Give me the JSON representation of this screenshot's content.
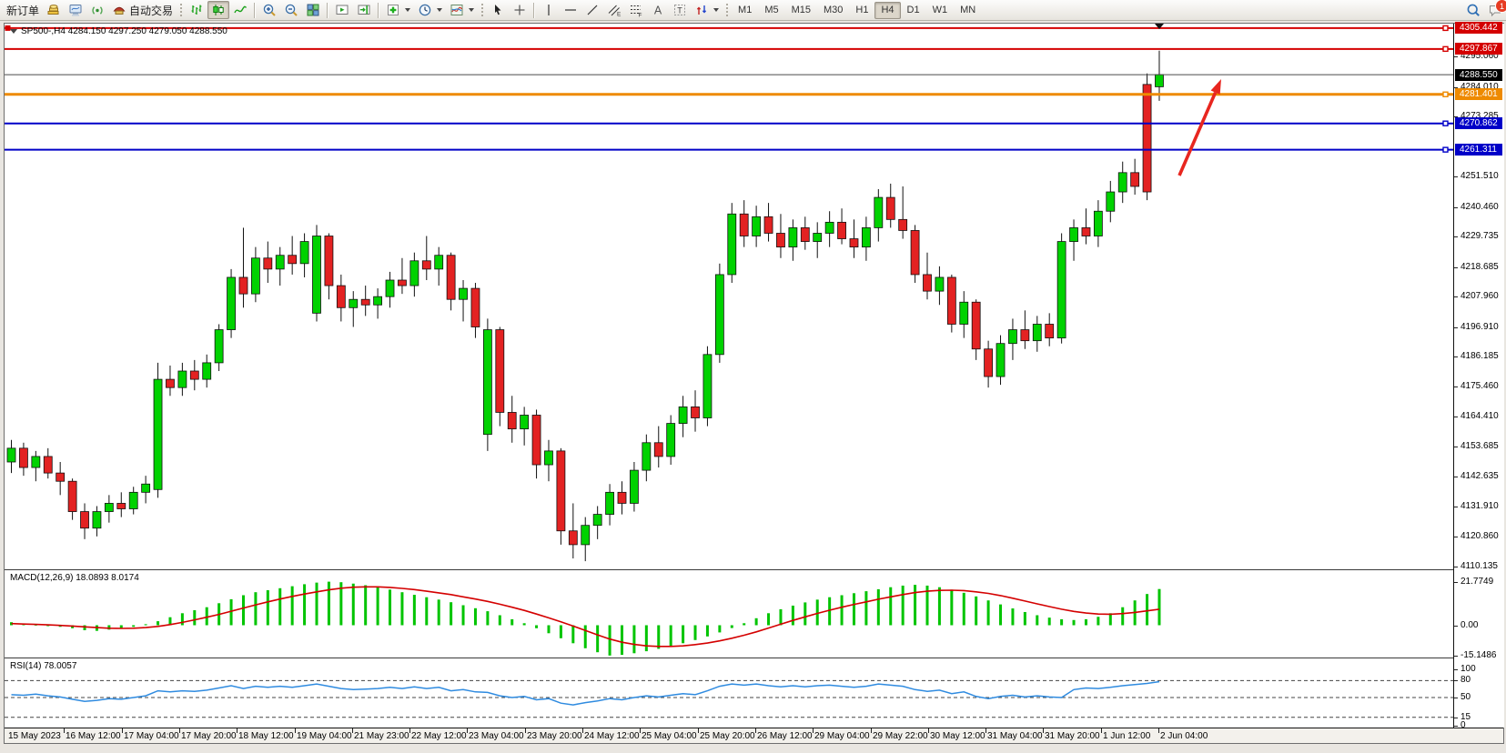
{
  "toolbar": {
    "new_order": "新订单",
    "auto_trading": "自动交易",
    "timeframes": [
      "M1",
      "M5",
      "M15",
      "M30",
      "H1",
      "H4",
      "D1",
      "W1",
      "MN"
    ],
    "active_timeframe": "H4",
    "chat_badge": "1",
    "items": [
      {
        "name": "new-order-button",
        "label": "新订单"
      },
      {
        "name": "gold-bars-icon-button",
        "kind": "gold"
      },
      {
        "name": "terminal-icon-button",
        "kind": "terminal"
      },
      {
        "name": "signal-icon-button",
        "kind": "signal"
      },
      {
        "name": "auto-trading-button",
        "kind": "ea",
        "label": "自动交易"
      },
      {
        "grip": true
      },
      {
        "name": "bar-chart-button",
        "kind": "bars"
      },
      {
        "name": "candlestick-chart-button",
        "kind": "candles",
        "active": true
      },
      {
        "name": "line-chart-button",
        "kind": "linechart"
      },
      {
        "sep": true
      },
      {
        "name": "zoom-in-button",
        "kind": "zoomin"
      },
      {
        "name": "zoom-out-button",
        "kind": "zoomout"
      },
      {
        "name": "tile-windows-button",
        "kind": "tile"
      },
      {
        "sep": true
      },
      {
        "name": "auto-scroll-button",
        "kind": "autoscroll"
      },
      {
        "name": "chart-shift-button",
        "kind": "chartshift"
      },
      {
        "sep": true
      },
      {
        "name": "new-chart-button",
        "kind": "newchart",
        "caret": true
      },
      {
        "name": "periodicity-button",
        "kind": "clock",
        "caret": true
      },
      {
        "name": "templates-button",
        "kind": "template",
        "caret": true
      },
      {
        "grip": true
      },
      {
        "name": "cursor-button",
        "kind": "cursor"
      },
      {
        "name": "crosshair-button",
        "kind": "crosshair"
      },
      {
        "sep": true
      },
      {
        "name": "vertical-line-button",
        "kind": "vline"
      },
      {
        "name": "horizontal-line-button",
        "kind": "hline"
      },
      {
        "name": "trendline-button",
        "kind": "tline"
      },
      {
        "name": "equidistant-channel-button",
        "kind": "channel"
      },
      {
        "name": "fibonacci-button",
        "kind": "fibo"
      },
      {
        "name": "text-button",
        "kind": "textA"
      },
      {
        "name": "text-label-button",
        "kind": "textT"
      },
      {
        "name": "arrows-button",
        "kind": "arrows",
        "caret": true
      },
      {
        "grip": true
      },
      {
        "timeframes": true
      },
      {
        "spacer": true
      },
      {
        "name": "search-button",
        "kind": "magnify"
      },
      {
        "name": "chat-button",
        "kind": "chat",
        "badge": "1"
      }
    ]
  },
  "chart": {
    "title": "SP500-,H4  4284.150 4297.250 4279.050 4288.550",
    "symbol": "SP500-",
    "period": "H4",
    "ohlc": {
      "open": "4284.150",
      "high": "4297.250",
      "low": "4279.050",
      "close": "4288.550"
    }
  },
  "indicators": {
    "macd": {
      "label": "MACD(12,26,9) 18.0893 8.0174",
      "axis": [
        "21.7749",
        "0.00",
        "-15.1486"
      ]
    },
    "rsi": {
      "label": "RSI(14) 78.0057",
      "axis": [
        "100",
        "80",
        "50",
        "15",
        "0"
      ],
      "levels": [
        80,
        50,
        15
      ]
    }
  },
  "price_axis": {
    "ticks": [
      "4295.060",
      "4284.010",
      "4273.285",
      "4251.510",
      "4240.460",
      "4229.735",
      "4218.685",
      "4207.960",
      "4196.910",
      "4186.185",
      "4175.460",
      "4164.410",
      "4153.685",
      "4142.635",
      "4131.910",
      "4120.860",
      "4110.135"
    ],
    "badges": [
      {
        "text": "4305.442",
        "color": "#d40000"
      },
      {
        "text": "4297.867",
        "color": "#d40000"
      },
      {
        "text": "4288.550",
        "color": "#000000"
      },
      {
        "text": "4281.401",
        "color": "#ee8a00"
      },
      {
        "text": "4270.862",
        "color": "#0000c8"
      },
      {
        "text": "4261.311",
        "color": "#0000c8"
      }
    ]
  },
  "hlines": [
    {
      "price": 4305.442,
      "color": "#d40000",
      "width": 2,
      "left_handle": true,
      "right_handle": true
    },
    {
      "price": 4297.867,
      "color": "#d40000",
      "width": 2,
      "right_handle": true
    },
    {
      "price": 4288.55,
      "color": "#4a4a4a",
      "width": 1
    },
    {
      "price": 4281.401,
      "color": "#ee8a00",
      "width": 3,
      "right_handle": true
    },
    {
      "price": 4270.862,
      "color": "#0000c8",
      "width": 2,
      "right_handle": true
    },
    {
      "price": 4261.311,
      "color": "#0000c8",
      "width": 2,
      "right_handle": true
    }
  ],
  "time_axis": [
    "15 May 2023",
    "16 May 12:00",
    "17 May 04:00",
    "17 May 20:00",
    "18 May 12:00",
    "19 May 04:00",
    "21 May 23:00",
    "22 May 12:00",
    "23 May 04:00",
    "23 May 20:00",
    "24 May 12:00",
    "25 May 04:00",
    "25 May 20:00",
    "26 May 12:00",
    "29 May 04:00",
    "29 May 22:00",
    "30 May 12:00",
    "31 May 04:00",
    "31 May 20:00",
    "1 Jun 12:00",
    "2 Jun 04:00"
  ],
  "annotations": {
    "trend_arrow": {
      "color": "#e8261f",
      "tail": [
        1291,
        167
      ],
      "tip": [
        1337,
        61
      ]
    }
  },
  "colors": {
    "candle_up": "#00d200",
    "candle_down": "#e32222",
    "candle_outline": "#111111",
    "macd_hist": "#00c400",
    "macd_signal": "#d40000",
    "rsi_line": "#2f8be0"
  },
  "chart_data": {
    "type": "candlestick",
    "symbol": "SP500-",
    "timeframe": "H4",
    "price_range": [
      4108,
      4306.4
    ],
    "candles": [
      [
        4148,
        4156,
        4144,
        4153
      ],
      [
        4153,
        4155,
        4143,
        4146
      ],
      [
        4146,
        4152,
        4141,
        4150
      ],
      [
        4150,
        4153,
        4142,
        4144
      ],
      [
        4144,
        4148,
        4136,
        4141
      ],
      [
        4141,
        4142,
        4127,
        4130
      ],
      [
        4130,
        4133,
        4120,
        4124
      ],
      [
        4124,
        4132,
        4121,
        4130
      ],
      [
        4130,
        4136,
        4126,
        4133
      ],
      [
        4133,
        4137,
        4128,
        4131
      ],
      [
        4131,
        4139,
        4129,
        4137
      ],
      [
        4137,
        4143,
        4133,
        4140
      ],
      [
        4138,
        4184,
        4135,
        4178
      ],
      [
        4178,
        4183,
        4172,
        4175
      ],
      [
        4175,
        4184,
        4172,
        4181
      ],
      [
        4181,
        4185,
        4174,
        4178
      ],
      [
        4178,
        4187,
        4175,
        4184
      ],
      [
        4184,
        4198,
        4181,
        4196
      ],
      [
        4196,
        4218,
        4193,
        4215
      ],
      [
        4215,
        4233,
        4204,
        4209
      ],
      [
        4209,
        4226,
        4206,
        4222
      ],
      [
        4222,
        4228,
        4213,
        4218
      ],
      [
        4218,
        4226,
        4212,
        4223
      ],
      [
        4223,
        4230,
        4216,
        4220
      ],
      [
        4220,
        4231,
        4215,
        4228
      ],
      [
        4202,
        4234,
        4199,
        4230
      ],
      [
        4230,
        4231,
        4207,
        4212
      ],
      [
        4212,
        4216,
        4199,
        4204
      ],
      [
        4204,
        4210,
        4197,
        4207
      ],
      [
        4207,
        4212,
        4201,
        4205
      ],
      [
        4205,
        4211,
        4200,
        4208
      ],
      [
        4208,
        4217,
        4204,
        4214
      ],
      [
        4214,
        4222,
        4209,
        4212
      ],
      [
        4212,
        4224,
        4208,
        4221
      ],
      [
        4221,
        4230,
        4214,
        4218
      ],
      [
        4218,
        4226,
        4212,
        4223
      ],
      [
        4223,
        4224,
        4203,
        4207
      ],
      [
        4207,
        4214,
        4199,
        4211
      ],
      [
        4211,
        4213,
        4193,
        4197
      ],
      [
        4158,
        4200,
        4152,
        4196
      ],
      [
        4196,
        4197,
        4161,
        4166
      ],
      [
        4166,
        4172,
        4155,
        4160
      ],
      [
        4160,
        4168,
        4154,
        4165
      ],
      [
        4165,
        4167,
        4142,
        4147
      ],
      [
        4147,
        4156,
        4141,
        4152
      ],
      [
        4152,
        4153,
        4118,
        4123
      ],
      [
        4123,
        4133,
        4113,
        4118
      ],
      [
        4118,
        4128,
        4112,
        4125
      ],
      [
        4125,
        4132,
        4120,
        4129
      ],
      [
        4129,
        4140,
        4125,
        4137
      ],
      [
        4137,
        4141,
        4129,
        4133
      ],
      [
        4133,
        4148,
        4130,
        4145
      ],
      [
        4145,
        4158,
        4141,
        4155
      ],
      [
        4155,
        4161,
        4146,
        4150
      ],
      [
        4150,
        4165,
        4147,
        4162
      ],
      [
        4162,
        4172,
        4157,
        4168
      ],
      [
        4168,
        4174,
        4159,
        4164
      ],
      [
        4164,
        4190,
        4161,
        4187
      ],
      [
        4187,
        4220,
        4184,
        4216
      ],
      [
        4216,
        4242,
        4213,
        4238
      ],
      [
        4238,
        4243,
        4226,
        4230
      ],
      [
        4230,
        4241,
        4226,
        4237
      ],
      [
        4237,
        4242,
        4228,
        4231
      ],
      [
        4231,
        4238,
        4222,
        4226
      ],
      [
        4226,
        4236,
        4221,
        4233
      ],
      [
        4233,
        4237,
        4225,
        4228
      ],
      [
        4228,
        4235,
        4222,
        4231
      ],
      [
        4231,
        4239,
        4226,
        4235
      ],
      [
        4235,
        4240,
        4227,
        4229
      ],
      [
        4229,
        4236,
        4222,
        4226
      ],
      [
        4226,
        4237,
        4221,
        4233
      ],
      [
        4233,
        4247,
        4228,
        4244
      ],
      [
        4244,
        4249,
        4233,
        4236
      ],
      [
        4236,
        4248,
        4229,
        4232
      ],
      [
        4232,
        4234,
        4213,
        4216
      ],
      [
        4216,
        4224,
        4207,
        4210
      ],
      [
        4210,
        4219,
        4205,
        4215
      ],
      [
        4215,
        4216,
        4195,
        4198
      ],
      [
        4198,
        4210,
        4193,
        4206
      ],
      [
        4206,
        4207,
        4185,
        4189
      ],
      [
        4189,
        4192,
        4175,
        4179
      ],
      [
        4179,
        4194,
        4176,
        4191
      ],
      [
        4191,
        4200,
        4185,
        4196
      ],
      [
        4196,
        4203,
        4189,
        4192
      ],
      [
        4192,
        4201,
        4188,
        4198
      ],
      [
        4198,
        4202,
        4190,
        4193
      ],
      [
        4193,
        4231,
        4191,
        4228
      ],
      [
        4228,
        4236,
        4221,
        4233
      ],
      [
        4233,
        4240,
        4227,
        4230
      ],
      [
        4230,
        4243,
        4226,
        4239
      ],
      [
        4239,
        4250,
        4235,
        4246
      ],
      [
        4246,
        4257,
        4242,
        4253
      ],
      [
        4253,
        4258,
        4245,
        4248
      ],
      [
        4285,
        4289,
        4243,
        4246
      ],
      [
        4284.15,
        4297.25,
        4279.05,
        4288.55
      ]
    ],
    "macd": {
      "range": [
        -15.1486,
        21.7749
      ],
      "histogram": [
        1.5,
        0.8,
        0.3,
        -0.3,
        -0.8,
        -1.5,
        -2.5,
        -2.8,
        -2.2,
        -1.5,
        -0.8,
        0.5,
        2,
        4,
        6,
        7.5,
        9,
        11,
        13,
        15,
        16.5,
        17.5,
        18.5,
        19.5,
        20.5,
        21.3,
        21.77,
        21.5,
        20.8,
        20,
        19,
        17.8,
        16.5,
        15.2,
        14,
        12.8,
        11.5,
        10,
        8.5,
        7,
        5,
        3,
        1,
        -1.5,
        -4,
        -6.5,
        -9,
        -11.5,
        -13.5,
        -15.15,
        -14.8,
        -14,
        -13,
        -11.8,
        -10.4,
        -9,
        -7.4,
        -5.6,
        -3.6,
        -1.4,
        1,
        3.5,
        6,
        8,
        9.8,
        11.4,
        12.8,
        14,
        15,
        16,
        17,
        18,
        19,
        19.8,
        20.2,
        19.8,
        19,
        17.8,
        16.2,
        14.4,
        12.4,
        10.4,
        8.4,
        6.6,
        5,
        3.8,
        3,
        2.6,
        3,
        4.2,
        6,
        9,
        12.4,
        15.6,
        18.09
      ],
      "signal": [
        0.8,
        0.6,
        0.4,
        0.2,
        -0.1,
        -0.4,
        -0.8,
        -1.2,
        -1.5,
        -1.6,
        -1.5,
        -1.2,
        -0.6,
        0.3,
        1.4,
        2.7,
        4,
        5.4,
        7,
        8.6,
        10.2,
        11.7,
        13.1,
        14.4,
        15.6,
        16.7,
        17.7,
        18.5,
        19,
        19.2,
        19.2,
        18.9,
        18.4,
        17.8,
        17,
        16.2,
        15.3,
        14.2,
        13.1,
        11.9,
        10.5,
        9,
        7.4,
        5.6,
        3.7,
        1.7,
        -0.4,
        -2.6,
        -4.8,
        -6.9,
        -8.5,
        -9.6,
        -10.3,
        -10.6,
        -10.6,
        -10.3,
        -9.7,
        -8.9,
        -7.8,
        -6.5,
        -5,
        -3.3,
        -1.4,
        0.5,
        2.4,
        4.2,
        5.9,
        7.5,
        9,
        10.4,
        11.7,
        13,
        14.2,
        15.3,
        16.3,
        17,
        17.4,
        17.5,
        17.3,
        16.7,
        15.9,
        14.8,
        13.5,
        12.1,
        10.7,
        9.3,
        8,
        6.9,
        6.1,
        5.6,
        5.5,
        5.8,
        6.4,
        7.2,
        8.02
      ]
    },
    "rsi": {
      "range": [
        0,
        100
      ],
      "values": [
        55,
        54,
        56,
        53,
        51,
        47,
        43,
        45,
        48,
        47,
        50,
        53,
        62,
        60,
        62,
        61,
        63,
        67,
        71,
        66,
        70,
        68,
        70,
        68,
        71,
        74,
        70,
        66,
        64,
        65,
        66,
        68,
        66,
        69,
        66,
        68,
        62,
        64,
        60,
        59,
        53,
        50,
        52,
        46,
        48,
        40,
        37,
        41,
        44,
        48,
        46,
        50,
        53,
        51,
        54,
        57,
        55,
        62,
        70,
        74,
        72,
        74,
        71,
        69,
        71,
        69,
        71,
        72,
        70,
        68,
        70,
        74,
        72,
        70,
        64,
        61,
        63,
        57,
        60,
        52,
        48,
        52,
        54,
        51,
        53,
        51,
        50,
        64,
        67,
        66,
        68,
        71,
        73,
        75,
        78
      ]
    }
  }
}
